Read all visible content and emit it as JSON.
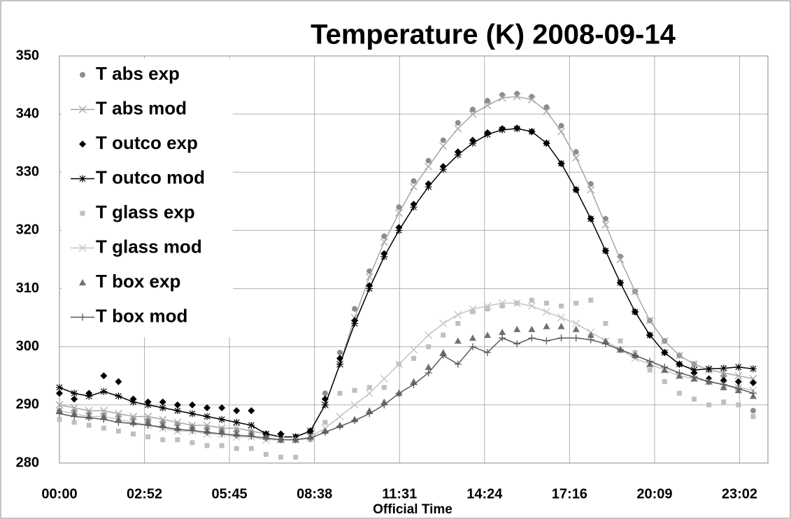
{
  "chart_data": {
    "type": "line",
    "title": "Temperature (K)   2008-09-14",
    "xlabel": "Official Time",
    "x": [
      0,
      30,
      60,
      90,
      120,
      150,
      180,
      210,
      240,
      270,
      300,
      330,
      360,
      390,
      420,
      450,
      480,
      510,
      540,
      570,
      600,
      630,
      660,
      690,
      720,
      750,
      780,
      810,
      840,
      870,
      900,
      930,
      960,
      990,
      1020,
      1050,
      1080,
      1110,
      1140,
      1170,
      1200,
      1230,
      1260,
      1290,
      1320,
      1350,
      1380,
      1410
    ],
    "xlim": [
      0,
      1440
    ],
    "xticks": [
      {
        "value": 0,
        "label": "00:00"
      },
      {
        "value": 172.8,
        "label": "02:52"
      },
      {
        "value": 345.6,
        "label": "05:45"
      },
      {
        "value": 518.4,
        "label": "08:38"
      },
      {
        "value": 691.2,
        "label": "11:31"
      },
      {
        "value": 864,
        "label": "14:24"
      },
      {
        "value": 1036.8,
        "label": "17:16"
      },
      {
        "value": 1209.6,
        "label": "20:09"
      },
      {
        "value": 1382.4,
        "label": "23:02"
      }
    ],
    "ylim": [
      280,
      350
    ],
    "yticks": [
      280,
      290,
      300,
      310,
      320,
      330,
      340,
      350
    ],
    "grid": true,
    "legend": "upper left",
    "series": [
      {
        "name": "T abs exp",
        "color": "#8c8c8c",
        "marker": "circle",
        "line": false,
        "values": [
          289,
          288.8,
          288.5,
          288.2,
          288,
          287.6,
          287.3,
          287,
          286.7,
          286.3,
          286,
          285.8,
          285.5,
          285.3,
          284.8,
          284.5,
          284.3,
          285,
          292,
          299,
          306.5,
          313,
          319,
          324,
          328.5,
          332,
          335.5,
          338.5,
          340.8,
          342.3,
          343.3,
          343.5,
          343,
          341.2,
          338,
          333.5,
          328,
          322,
          315.5,
          309.5,
          304.5,
          301,
          298.5,
          297,
          296,
          295,
          293,
          289
        ]
      },
      {
        "name": "T abs mod",
        "color": "#a6a6a6",
        "marker": "x",
        "line": true,
        "values": [
          290,
          289.5,
          289,
          289,
          288.5,
          288,
          288,
          287.5,
          287,
          286.5,
          286.5,
          286,
          286,
          285.5,
          285,
          284.5,
          284.5,
          285.5,
          290,
          297,
          305,
          312,
          318,
          323,
          327.5,
          331,
          334.5,
          337.5,
          340,
          341.5,
          342.8,
          343,
          342.5,
          340.5,
          337,
          332.5,
          327,
          321,
          315,
          309.5,
          304.5,
          301,
          298.5,
          297,
          296,
          295.5,
          295,
          294.5
        ]
      },
      {
        "name": "T outco exp",
        "color": "#000000",
        "marker": "diamond",
        "line": false,
        "values": [
          292,
          291,
          292,
          295,
          294,
          291,
          290.5,
          290.5,
          290,
          290,
          289.5,
          289.5,
          289,
          289,
          285,
          285,
          284.5,
          285.5,
          291,
          298,
          304.5,
          310.5,
          316,
          320.5,
          324.5,
          328,
          331,
          333.5,
          335.5,
          336.8,
          337.5,
          337.6,
          337,
          335,
          331.5,
          327,
          322,
          316.5,
          311,
          306,
          302,
          299,
          297,
          295.5,
          294.5,
          294.2,
          294,
          293.8
        ]
      },
      {
        "name": "T outco mod",
        "color": "#000000",
        "marker": "star",
        "line": true,
        "values": [
          293,
          292,
          291.5,
          292.3,
          291.5,
          290.5,
          290,
          289.5,
          289,
          288.5,
          288,
          287.5,
          287,
          286.5,
          285,
          284.5,
          284.5,
          285.5,
          290,
          297,
          304,
          310,
          315.5,
          320,
          324,
          327.5,
          330.5,
          333,
          335,
          336.5,
          337.3,
          337.5,
          337,
          335,
          331.5,
          327,
          322,
          316.5,
          311,
          306,
          302,
          299,
          297,
          296,
          296.2,
          296.3,
          296.5,
          296.2
        ]
      },
      {
        "name": "T glass exp",
        "color": "#bfbfbf",
        "marker": "square",
        "line": false,
        "values": [
          287.5,
          287,
          286.5,
          286,
          285.5,
          285,
          284.5,
          284,
          284,
          283.5,
          283,
          283,
          282.5,
          282.5,
          281.5,
          281,
          281,
          284,
          287,
          292,
          292.5,
          293,
          293,
          297,
          298,
          300,
          302,
          304,
          306,
          306.5,
          307,
          307.5,
          308,
          307.5,
          307,
          307.5,
          308,
          304,
          301,
          299,
          296,
          294,
          292,
          291,
          290,
          290.5,
          290,
          288
        ]
      },
      {
        "name": "T glass mod",
        "color": "#c4c4c4",
        "marker": "x",
        "line": true,
        "values": [
          289,
          288.5,
          288,
          288,
          287.5,
          287,
          286.5,
          286,
          285.5,
          285.5,
          285,
          285,
          284.5,
          284.5,
          284,
          284,
          284,
          284.5,
          286,
          288,
          290,
          292,
          294.5,
          297,
          299.5,
          302,
          304,
          305.5,
          306.5,
          307,
          307.5,
          307.5,
          307,
          306,
          305,
          304,
          302.5,
          301,
          299.5,
          298,
          297,
          296,
          295,
          294.5,
          294,
          293.5,
          293,
          292.5
        ]
      },
      {
        "name": "T box exp",
        "color": "#707070",
        "marker": "triangle",
        "line": false,
        "values": [
          289,
          288.5,
          288,
          288,
          287.5,
          287,
          287,
          286.5,
          286,
          286,
          285.5,
          285.5,
          285,
          285,
          284.5,
          284,
          284,
          284.5,
          285.5,
          286.5,
          287.5,
          289,
          290.5,
          292,
          294,
          296.5,
          299,
          301,
          301.5,
          302,
          302.5,
          303,
          303,
          303.5,
          303.5,
          303,
          302,
          301,
          299.5,
          298.5,
          297,
          296,
          295,
          294.5,
          294,
          293,
          292.5,
          291.5
        ]
      },
      {
        "name": "T box mod",
        "color": "#595959",
        "marker": "plus",
        "line": true,
        "values": [
          288.5,
          288,
          287.8,
          287.5,
          287,
          286.8,
          286.5,
          286.2,
          285.8,
          285.6,
          285.3,
          285,
          284.8,
          284.6,
          284.3,
          284,
          284,
          284.3,
          285.3,
          286.3,
          287.3,
          288.5,
          290,
          292,
          293.5,
          295.5,
          298.5,
          297,
          300,
          299,
          301.5,
          300.5,
          301.5,
          301,
          301.5,
          301.5,
          301.2,
          300.5,
          299.5,
          298.5,
          297.5,
          296.5,
          295.5,
          294.8,
          294,
          293.5,
          292.8,
          292
        ]
      }
    ]
  }
}
